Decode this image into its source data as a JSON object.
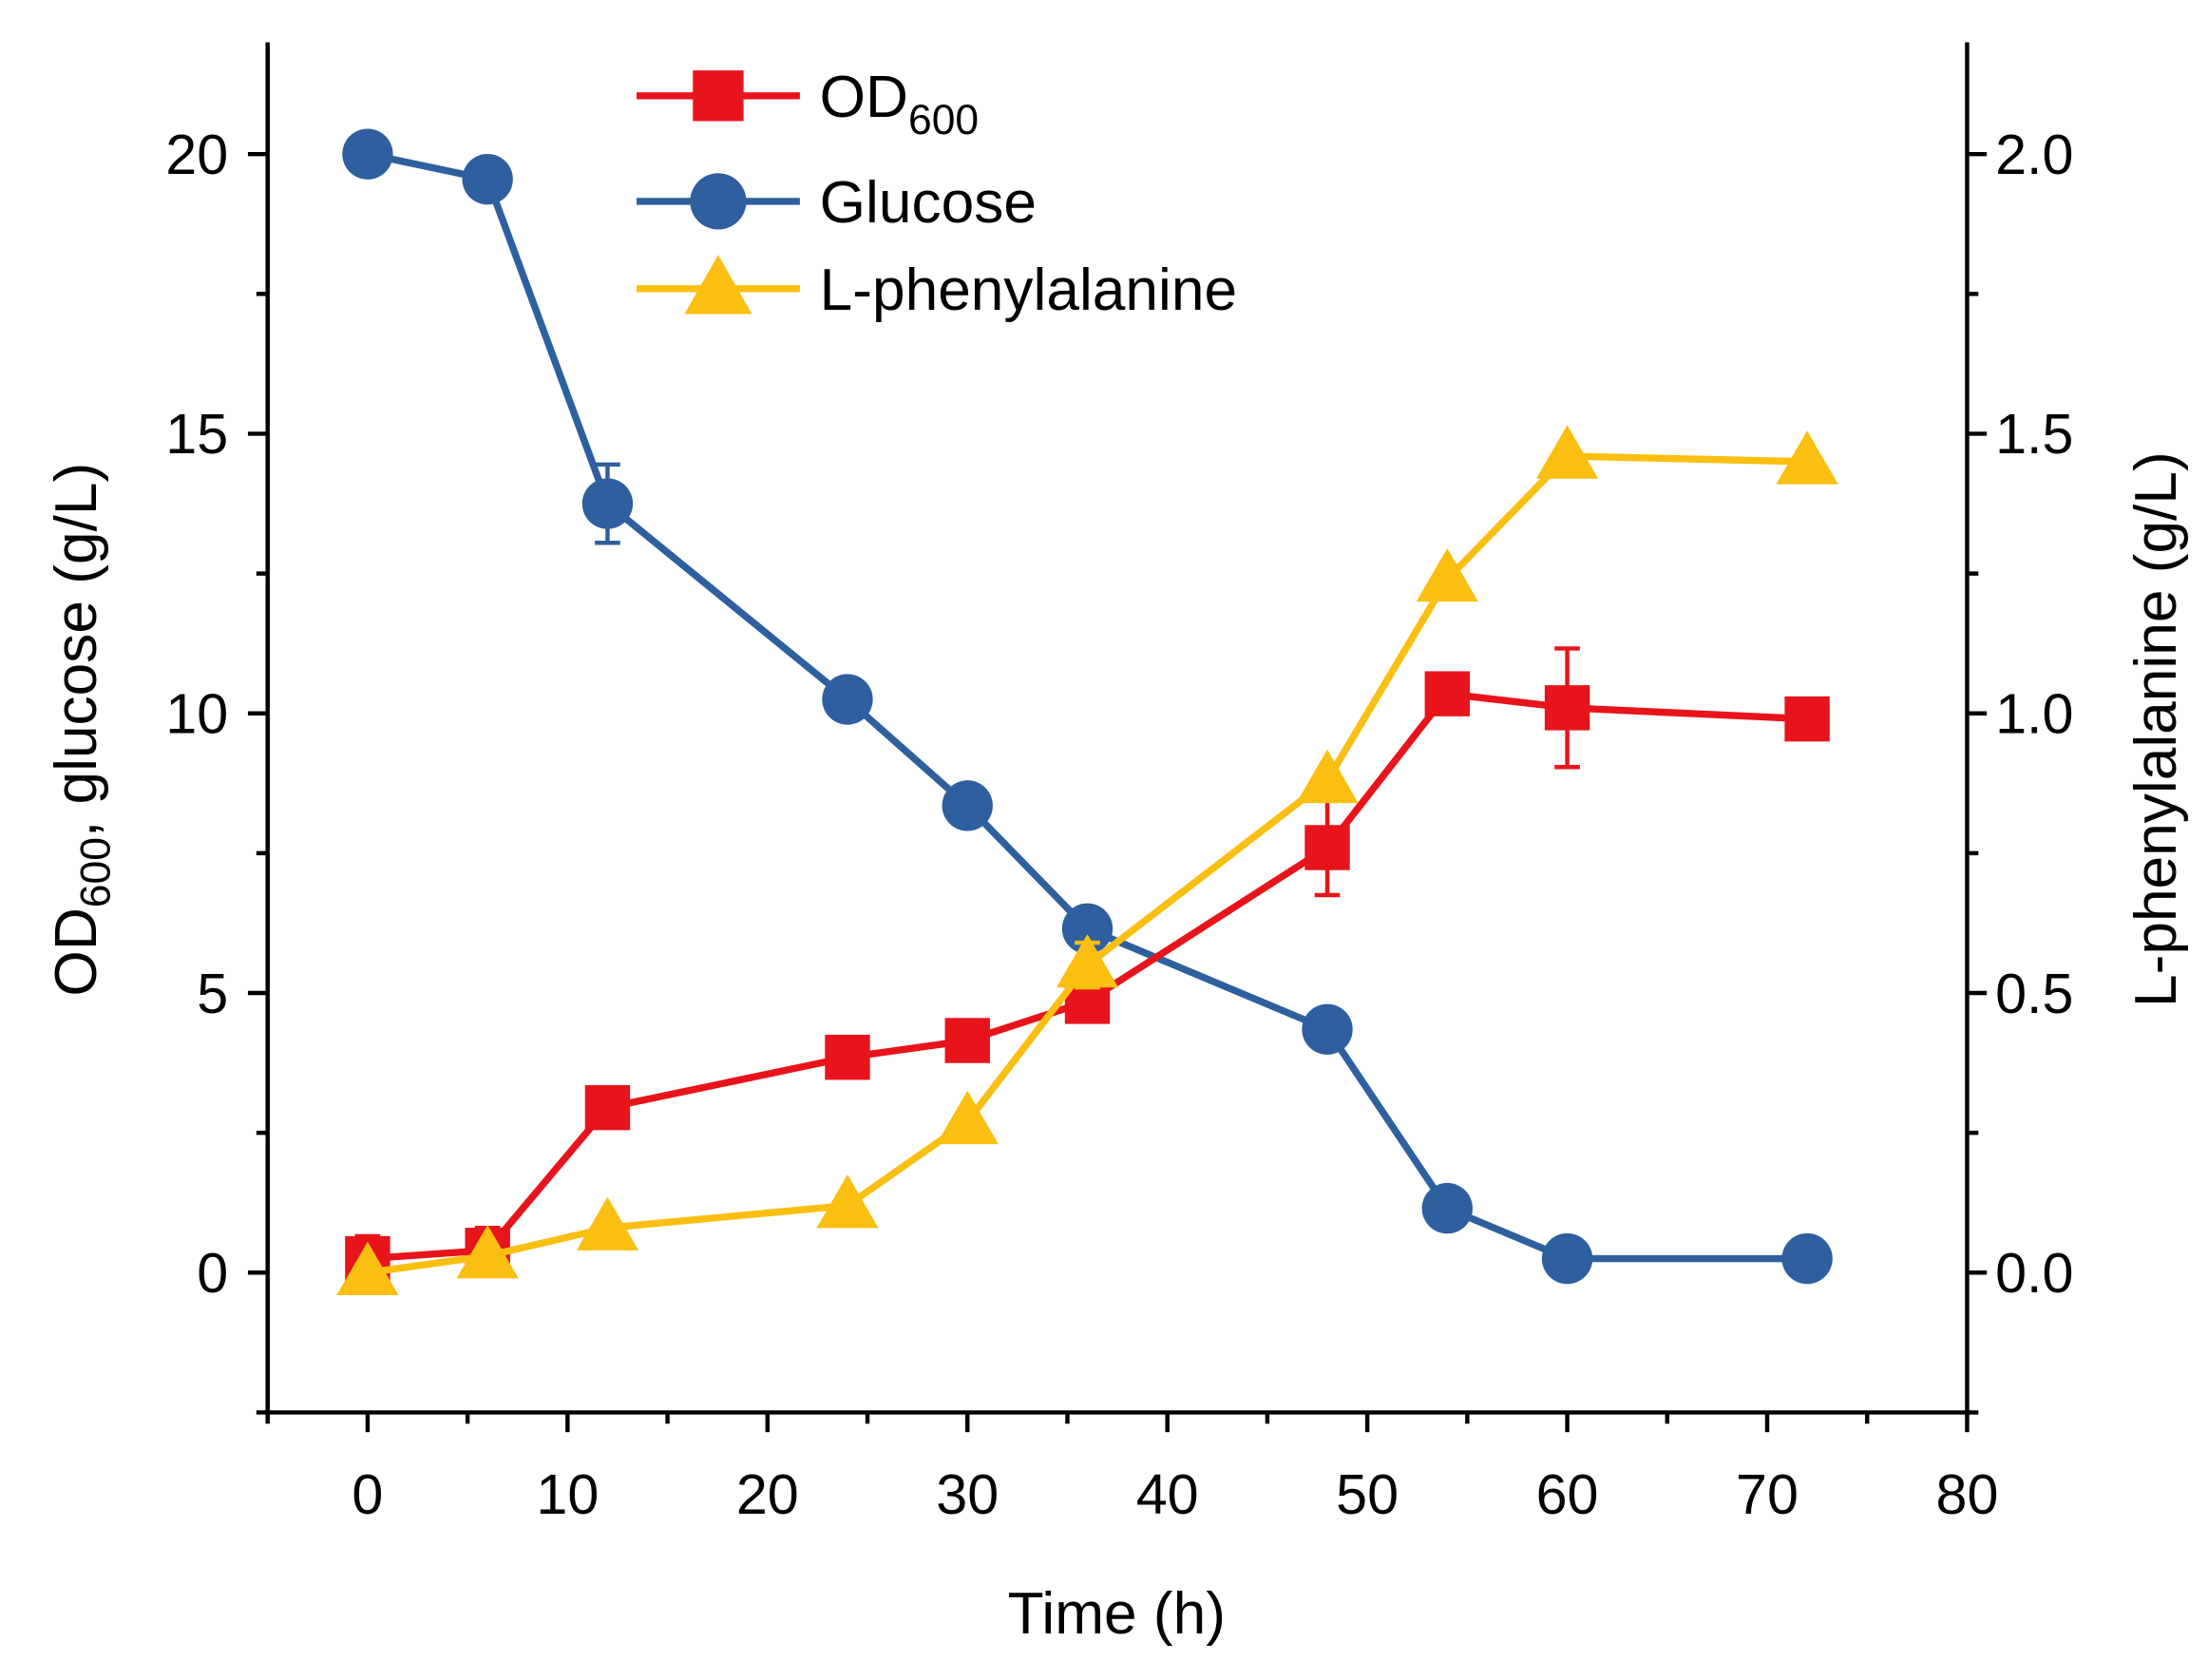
{
  "chart_data": {
    "type": "line",
    "xlabel": "Time (h)",
    "ylabel_main": "OD",
    "ylabel_sub": "600",
    "ylabel_rest": ", glucose (g/L)",
    "y2label": "L-phenylalanine (g/L)",
    "xlim": [
      -5,
      80
    ],
    "ylim": [
      -2.5,
      22
    ],
    "y2lim": [
      -0.25,
      2.2
    ],
    "xticks": [
      "0",
      "10",
      "20",
      "30",
      "40",
      "50",
      "60",
      "70",
      "80"
    ],
    "yticks": [
      "0",
      "5",
      "10",
      "15",
      "20"
    ],
    "y2ticks": [
      "0.0",
      "0.5",
      "1.0",
      "1.5",
      "2.0"
    ],
    "legend_position": "top-center",
    "x": [
      0,
      6,
      12,
      24,
      30,
      36,
      48,
      54,
      60,
      72
    ],
    "series": [
      {
        "name": "OD",
        "name_sub": "600",
        "axis": "left",
        "color": "#e8141b",
        "marker": "square",
        "values": [
          0.25,
          0.4,
          2.95,
          3.85,
          4.15,
          4.85,
          7.6,
          10.35,
          10.1,
          9.9
        ],
        "errors": [
          0.4,
          0.4,
          0.2,
          0.1,
          0.1,
          0.2,
          0.85,
          0.2,
          1.06,
          0.1
        ]
      },
      {
        "name": "Glucose",
        "axis": "left",
        "color": "#2e5f9e",
        "marker": "circle",
        "values": [
          20,
          19.55,
          13.75,
          10.25,
          8.35,
          6.15,
          4.35,
          1.15,
          0.25,
          0.25
        ],
        "errors": [
          0.1,
          0.1,
          0.7,
          0.1,
          0.1,
          0.1,
          0.1,
          0.1,
          0.1,
          0.1
        ]
      },
      {
        "name": "L-phenylalanine",
        "axis": "right",
        "color": "#fbbf12",
        "marker": "triangle",
        "values": [
          0.0,
          0.03,
          0.08,
          0.12,
          0.27,
          0.55,
          0.88,
          1.24,
          1.46,
          1.45
        ],
        "errors": [
          0.01,
          0.01,
          0.01,
          0.01,
          0.01,
          0.04,
          0.01,
          0.01,
          0.01,
          0.01
        ]
      }
    ]
  }
}
